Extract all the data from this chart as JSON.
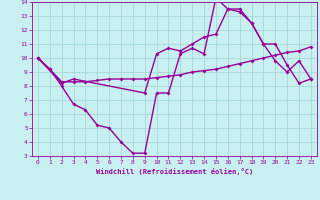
{
  "xlabel": "Windchill (Refroidissement éolien,°C)",
  "xlim": [
    -0.5,
    23.5
  ],
  "ylim": [
    3,
    14
  ],
  "xticks": [
    0,
    1,
    2,
    3,
    4,
    5,
    6,
    7,
    8,
    9,
    10,
    11,
    12,
    13,
    14,
    15,
    16,
    17,
    18,
    19,
    20,
    21,
    22,
    23
  ],
  "yticks": [
    3,
    4,
    5,
    6,
    7,
    8,
    9,
    10,
    11,
    12,
    13,
    14
  ],
  "background_color": "#c8f0f0",
  "grid_color": "#a8d8d8",
  "line_color": "#990099",
  "line_width": 1.0,
  "marker": "D",
  "marker_size": 2.0,
  "lines": [
    {
      "x": [
        0,
        1,
        2,
        3,
        4,
        5,
        6,
        7,
        8,
        9,
        10,
        11,
        12,
        13,
        14,
        15,
        16,
        17,
        18,
        19,
        20,
        21,
        22,
        23
      ],
      "y": [
        10,
        9.2,
        8.3,
        8.3,
        8.3,
        8.4,
        8.5,
        8.5,
        8.5,
        8.5,
        8.6,
        8.7,
        8.8,
        9.0,
        9.1,
        9.2,
        9.4,
        9.6,
        9.8,
        10.0,
        10.2,
        10.4,
        10.5,
        10.8
      ]
    },
    {
      "x": [
        0,
        1,
        2,
        3,
        4,
        5,
        6,
        7,
        8,
        9,
        10,
        11,
        12,
        13,
        14,
        15,
        16,
        17,
        18,
        19,
        20,
        21,
        22,
        23
      ],
      "y": [
        10,
        9.2,
        8.0,
        6.7,
        6.3,
        5.2,
        5.0,
        4.0,
        3.2,
        3.2,
        7.5,
        7.5,
        10.3,
        10.7,
        10.3,
        14.3,
        13.5,
        13.5,
        12.5,
        11.0,
        9.8,
        9.0,
        9.8,
        8.5
      ]
    },
    {
      "x": [
        0,
        2,
        3,
        9,
        10,
        11,
        12,
        13,
        14,
        15,
        16,
        17,
        18,
        19,
        20,
        21,
        22,
        23
      ],
      "y": [
        10,
        8.2,
        8.5,
        7.5,
        10.3,
        10.7,
        10.5,
        11.0,
        11.5,
        11.7,
        13.5,
        13.3,
        12.5,
        11.0,
        11.0,
        9.5,
        8.2,
        8.5
      ]
    }
  ]
}
